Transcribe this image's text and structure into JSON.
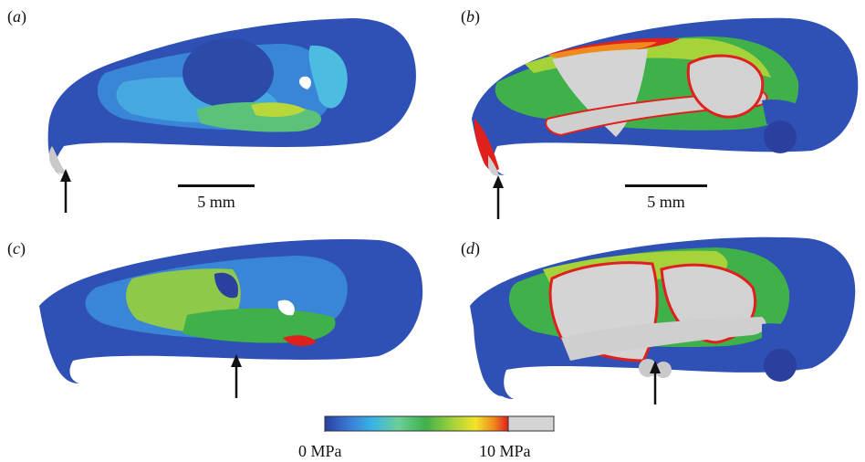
{
  "panels": [
    {
      "id": "a",
      "label_open": "(",
      "letter": "a",
      "label_close": ")"
    },
    {
      "id": "b",
      "label_open": "(",
      "letter": "b",
      "label_close": ")"
    },
    {
      "id": "c",
      "label_open": "(",
      "letter": "c",
      "label_close": ")"
    },
    {
      "id": "d",
      "label_open": "(",
      "letter": "d",
      "label_close": ")"
    }
  ],
  "scalebars": {
    "left": "5 mm",
    "right": "5 mm"
  },
  "colorbar": {
    "min_label": "0 MPa",
    "max_label": "10 MPa",
    "stops": [
      "#2a3f9e",
      "#3a7fd8",
      "#39b3e6",
      "#6ccf9a",
      "#3fb04a",
      "#a6d23a",
      "#f2e62a",
      "#f08a1e",
      "#e0201c"
    ],
    "overflow_color": "#d4d4d4"
  },
  "colors": {
    "low": "#2e4fb0",
    "mid": "#4fbde0",
    "green": "#58c05a",
    "high": "#e3261d",
    "bone": "#c9c9c9"
  }
}
